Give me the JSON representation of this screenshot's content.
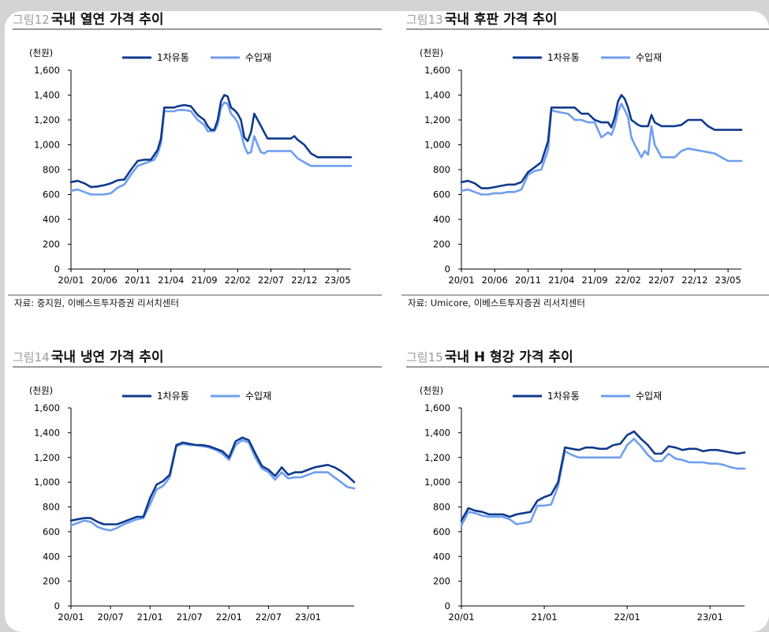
{
  "colors": {
    "primary": "#0f3a8c",
    "imported": "#6f9ef0",
    "header_rule": "#9a9a9a",
    "fig_no": "#9b9b9b",
    "axis": "#000000"
  },
  "figures": [
    {
      "fig_no": "그림12",
      "title": "국내 열연 가격 추이",
      "source": "자료: 중지원, 이베스트투자증권 리서치센터",
      "chart_data": {
        "type": "line",
        "title": "국내 열연 가격 추이",
        "ylabel": "(천원)",
        "ylim": [
          0,
          1600
        ],
        "yticks": [
          "0",
          "200",
          "400",
          "600",
          "800",
          "1,000",
          "1,200",
          "1,400",
          "1,600"
        ],
        "xlim": [
          0,
          42
        ],
        "xticks": [
          0,
          5,
          10,
          15,
          20,
          25,
          30,
          35,
          40
        ],
        "xtick_labels": [
          "20/01",
          "20/06",
          "20/11",
          "21/04",
          "21/09",
          "22/02",
          "22/07",
          "22/12",
          "23/05"
        ],
        "series": [
          {
            "name": "1차유통",
            "x": [
              0,
              1,
              2,
              3,
              4,
              5,
              6,
              7,
              8,
              9,
              10,
              11,
              11.5,
              12,
              12.5,
              13,
              13.5,
              14,
              14.5,
              15,
              15.5,
              16,
              17,
              18,
              19,
              20,
              20.5,
              21,
              21.5,
              22,
              22.5,
              23,
              23.5,
              24,
              24.5,
              25,
              25.5,
              26,
              26.5,
              27,
              27.5,
              28,
              28.5,
              29,
              29.5,
              30,
              30.5,
              31,
              31.5,
              32,
              32.5,
              33,
              33.5,
              34,
              35,
              36,
              37,
              38,
              39,
              40,
              40.5,
              41,
              41.5,
              42
            ],
            "y": [
              700,
              710,
              690,
              660,
              665,
              675,
              690,
              715,
              720,
              800,
              870,
              880,
              880,
              880,
              920,
              960,
              1050,
              1300,
              1300,
              1300,
              1300,
              1310,
              1320,
              1310,
              1240,
              1200,
              1150,
              1120,
              1120,
              1200,
              1350,
              1400,
              1390,
              1300,
              1280,
              1250,
              1200,
              1060,
              1030,
              1100,
              1250,
              1200,
              1150,
              1100,
              1050,
              1050,
              1050,
              1050,
              1050,
              1050,
              1050,
              1050,
              1070,
              1040,
              1000,
              930,
              900,
              900,
              900,
              900,
              900,
              900,
              900,
              900
            ]
          },
          {
            "name": "수입재",
            "x": [
              0,
              1,
              2,
              3,
              4,
              5,
              6,
              7,
              8,
              9,
              10,
              11,
              11.5,
              12,
              12.5,
              13,
              13.5,
              14,
              14.5,
              15,
              15.5,
              16,
              17,
              18,
              19,
              20,
              20.5,
              21,
              21.5,
              22,
              22.5,
              23,
              23.5,
              24,
              24.5,
              25,
              25.5,
              26,
              26.5,
              27,
              27.5,
              28,
              28.5,
              29,
              29.5,
              30,
              30.5,
              31,
              31.5,
              32,
              32.5,
              33,
              33.5,
              34,
              35,
              36,
              37,
              38,
              39,
              40,
              40.5,
              41,
              41.5,
              42
            ],
            "y": [
              630,
              640,
              620,
              600,
              600,
              600,
              610,
              655,
              680,
              760,
              830,
              850,
              860,
              870,
              880,
              930,
              1010,
              1270,
              1270,
              1270,
              1270,
              1280,
              1280,
              1270,
              1200,
              1160,
              1110,
              1110,
              1110,
              1160,
              1300,
              1340,
              1330,
              1250,
              1220,
              1180,
              1100,
              990,
              930,
              940,
              1070,
              1000,
              940,
              930,
              950,
              950,
              950,
              950,
              950,
              950,
              950,
              950,
              920,
              890,
              860,
              830,
              830,
              830,
              830,
              830,
              830,
              830,
              830,
              830
            ]
          }
        ]
      }
    },
    {
      "fig_no": "그림13",
      "title": "국내 후판 가격 추이",
      "source": "자료: Umicore, 이베스트투자증권 리서치센터",
      "chart_data": {
        "type": "line",
        "title": "국내 후판 가격 추이",
        "ylabel": "(천원)",
        "ylim": [
          0,
          1600
        ],
        "yticks": [
          "0",
          "200",
          "400",
          "600",
          "800",
          "1,000",
          "1,200",
          "1,400",
          "1,600"
        ],
        "xlim": [
          0,
          42
        ],
        "xticks": [
          0,
          5,
          10,
          15,
          20,
          25,
          30,
          35,
          40
        ],
        "xtick_labels": [
          "20/01",
          "20/06",
          "20/11",
          "21/04",
          "21/09",
          "22/02",
          "22/07",
          "22/12",
          "23/05"
        ],
        "series": [
          {
            "name": "1차유통",
            "x": [
              0,
              1,
              2,
              3,
              4,
              5,
              6,
              7,
              8,
              9,
              10,
              11,
              12,
              13,
              13.5,
              14,
              15,
              16,
              17,
              18,
              19,
              20,
              21,
              22,
              22.5,
              23,
              23.5,
              24,
              24.5,
              25,
              25.5,
              26,
              26.5,
              27,
              27.5,
              28,
              28.5,
              29,
              30,
              31,
              32,
              33,
              34,
              35,
              36,
              37,
              38,
              39,
              40,
              41,
              42
            ],
            "y": [
              700,
              710,
              690,
              650,
              650,
              660,
              670,
              680,
              680,
              700,
              780,
              820,
              860,
              1030,
              1300,
              1300,
              1300,
              1300,
              1300,
              1250,
              1250,
              1200,
              1180,
              1180,
              1140,
              1220,
              1350,
              1400,
              1370,
              1300,
              1200,
              1180,
              1160,
              1150,
              1150,
              1150,
              1240,
              1180,
              1150,
              1150,
              1150,
              1160,
              1200,
              1200,
              1200,
              1150,
              1120,
              1120,
              1120,
              1120,
              1120
            ]
          },
          {
            "name": "수입재",
            "x": [
              0,
              1,
              2,
              3,
              4,
              5,
              6,
              7,
              8,
              9,
              10,
              11,
              12,
              13,
              13.5,
              14,
              15,
              16,
              17,
              18,
              19,
              20,
              21,
              22,
              22.5,
              23,
              23.5,
              24,
              24.5,
              25,
              25.5,
              26,
              26.5,
              27,
              27.5,
              28,
              28.5,
              29,
              30,
              31,
              32,
              33,
              34,
              35,
              36,
              37,
              38,
              39,
              40,
              41,
              42
            ],
            "y": [
              630,
              640,
              620,
              600,
              600,
              610,
              610,
              620,
              620,
              640,
              760,
              790,
              800,
              960,
              1280,
              1270,
              1260,
              1250,
              1200,
              1200,
              1180,
              1180,
              1060,
              1100,
              1080,
              1150,
              1270,
              1330,
              1280,
              1220,
              1060,
              1000,
              950,
              900,
              950,
              920,
              1150,
              1000,
              900,
              900,
              900,
              950,
              970,
              960,
              950,
              940,
              930,
              900,
              870,
              870,
              870
            ]
          }
        ]
      }
    },
    {
      "fig_no": "그림14",
      "title": "국내 냉연 가격 추이",
      "source": "",
      "chart_data": {
        "type": "line",
        "title": "국내 냉연 가격 추이",
        "ylabel": "(천원)",
        "ylim": [
          0,
          1600
        ],
        "yticks": [
          "0",
          "200",
          "400",
          "600",
          "800",
          "1,000",
          "1,200",
          "1,400",
          "1,600"
        ],
        "xlim": [
          0,
          43
        ],
        "xticks": [
          0,
          6,
          12,
          18,
          24,
          30,
          36
        ],
        "xtick_labels": [
          "20/01",
          "20/07",
          "21/01",
          "21/07",
          "22/01",
          "22/07",
          "23/01"
        ],
        "series": [
          {
            "name": "1차유통",
            "x": [
              0,
              1,
              2,
              3,
              4,
              5,
              6,
              7,
              8,
              9,
              10,
              11,
              12,
              13,
              14,
              15,
              16,
              17,
              18,
              19,
              20,
              21,
              22,
              23,
              24,
              25,
              26,
              27,
              28,
              29,
              30,
              31,
              32,
              33,
              34,
              35,
              36,
              37,
              38,
              39,
              40,
              41,
              42,
              43
            ],
            "y": [
              690,
              700,
              710,
              710,
              680,
              660,
              660,
              660,
              680,
              700,
              720,
              720,
              870,
              980,
              1010,
              1060,
              1300,
              1320,
              1310,
              1300,
              1300,
              1290,
              1270,
              1250,
              1200,
              1330,
              1360,
              1340,
              1230,
              1130,
              1100,
              1050,
              1120,
              1060,
              1080,
              1080,
              1100,
              1120,
              1130,
              1140,
              1120,
              1090,
              1050,
              1000
            ]
          },
          {
            "name": "수입재",
            "x": [
              0,
              1,
              2,
              3,
              4,
              5,
              6,
              7,
              8,
              9,
              10,
              11,
              12,
              13,
              14,
              15,
              16,
              17,
              18,
              19,
              20,
              21,
              22,
              23,
              24,
              25,
              26,
              27,
              28,
              29,
              30,
              31,
              32,
              33,
              34,
              35,
              36,
              37,
              38,
              39,
              40,
              41,
              42,
              43
            ],
            "y": [
              650,
              670,
              690,
              680,
              640,
              620,
              610,
              630,
              660,
              680,
              700,
              710,
              820,
              940,
              970,
              1040,
              1290,
              1310,
              1300,
              1300,
              1290,
              1280,
              1260,
              1230,
              1180,
              1300,
              1340,
              1320,
              1200,
              1110,
              1080,
              1020,
              1080,
              1030,
              1040,
              1040,
              1060,
              1080,
              1080,
              1080,
              1040,
              1000,
              960,
              950
            ]
          }
        ]
      }
    },
    {
      "fig_no": "그림15",
      "title": "국내 H 형강 가격 추이",
      "source": "",
      "chart_data": {
        "type": "line",
        "title": "국내 H 형강 가격 추이",
        "ylabel": "(천원)",
        "ylim": [
          0,
          1600
        ],
        "yticks": [
          "0",
          "200",
          "400",
          "600",
          "800",
          "1,000",
          "1,200",
          "1,400",
          "1,600"
        ],
        "xlim": [
          0,
          41
        ],
        "xticks": [
          0,
          12,
          24,
          36
        ],
        "xtick_labels": [
          "20/01",
          "21/01",
          "22/01",
          "23/01"
        ],
        "series": [
          {
            "name": "1차유통",
            "x": [
              0,
              1,
              2,
              3,
              4,
              5,
              6,
              7,
              8,
              9,
              10,
              11,
              12,
              13,
              14,
              15,
              16,
              17,
              18,
              19,
              20,
              21,
              22,
              23,
              24,
              25,
              26,
              27,
              28,
              29,
              30,
              31,
              32,
              33,
              34,
              35,
              36,
              37,
              38,
              39,
              40,
              41
            ],
            "y": [
              690,
              790,
              770,
              760,
              740,
              740,
              740,
              720,
              740,
              750,
              760,
              850,
              880,
              900,
              1000,
              1280,
              1270,
              1260,
              1280,
              1280,
              1270,
              1270,
              1300,
              1310,
              1380,
              1410,
              1350,
              1300,
              1230,
              1230,
              1290,
              1280,
              1260,
              1270,
              1270,
              1250,
              1260,
              1260,
              1250,
              1240,
              1230,
              1240
            ]
          },
          {
            "name": "수입재",
            "x": [
              0,
              1,
              2,
              3,
              4,
              5,
              6,
              7,
              8,
              9,
              10,
              11,
              12,
              13,
              14,
              15,
              16,
              17,
              18,
              19,
              20,
              21,
              22,
              23,
              24,
              25,
              26,
              27,
              28,
              29,
              30,
              31,
              32,
              33,
              34,
              35,
              36,
              37,
              38,
              39,
              40,
              41
            ],
            "y": [
              650,
              760,
              750,
              730,
              720,
              720,
              720,
              700,
              660,
              670,
              680,
              810,
              810,
              820,
              970,
              1250,
              1220,
              1200,
              1200,
              1200,
              1200,
              1200,
              1200,
              1200,
              1300,
              1350,
              1290,
              1220,
              1170,
              1170,
              1230,
              1190,
              1180,
              1160,
              1160,
              1160,
              1150,
              1150,
              1140,
              1120,
              1110,
              1110
            ]
          }
        ]
      }
    }
  ]
}
